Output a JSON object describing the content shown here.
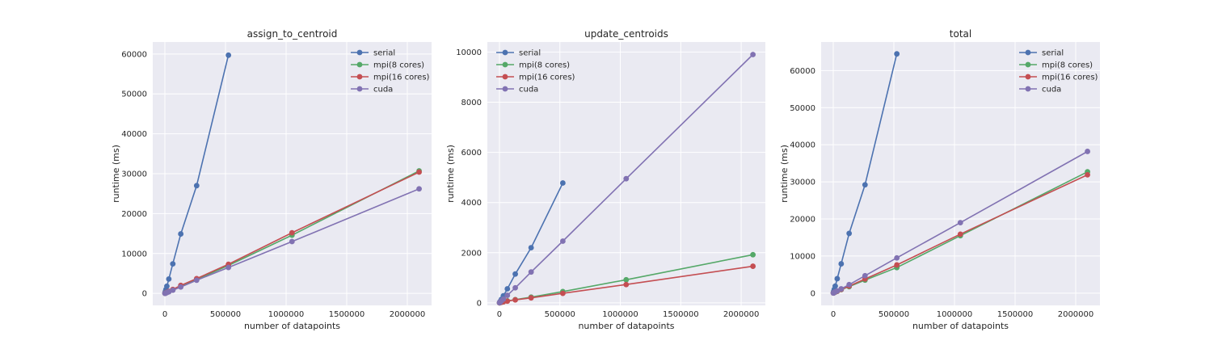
{
  "chart_data": [
    {
      "type": "line",
      "title": "assign_to_centroid",
      "xlabel": "number of datapoints",
      "ylabel": "runtime (ms)",
      "xlim": [
        -100000,
        2200000
      ],
      "ylim": [
        -3000,
        63000
      ],
      "xticks": [
        0,
        500000,
        1000000,
        1500000,
        2000000
      ],
      "xtick_labels": [
        "0",
        "500000",
        "1000000",
        "1500000",
        "2000000"
      ],
      "yticks": [
        0,
        10000,
        20000,
        30000,
        40000,
        50000,
        60000
      ],
      "ytick_labels": [
        "0",
        "10000",
        "20000",
        "30000",
        "40000",
        "50000",
        "60000"
      ],
      "grid": true,
      "legend": "upper right",
      "series": [
        {
          "name": "serial",
          "color": "#4c72b0",
          "x": [
            1024,
            2048,
            4096,
            8192,
            16384,
            32768,
            65536,
            131072,
            262144,
            524288
          ],
          "y": [
            100,
            200,
            450,
            950,
            1800,
            3600,
            7400,
            14900,
            27000,
            59700
          ]
        },
        {
          "name": "mpi(8 cores)",
          "color": "#55a868",
          "x": [
            1024,
            2048,
            4096,
            8192,
            16384,
            32768,
            65536,
            131072,
            262144,
            524288,
            1048576,
            2097152
          ],
          "y": [
            20,
            40,
            80,
            150,
            250,
            450,
            900,
            1800,
            3500,
            7000,
            14600,
            30700
          ]
        },
        {
          "name": "mpi(16 cores)",
          "color": "#c44e52",
          "x": [
            1024,
            2048,
            4096,
            8192,
            16384,
            32768,
            65536,
            131072,
            262144,
            524288,
            1048576,
            2097152
          ],
          "y": [
            20,
            40,
            80,
            150,
            250,
            500,
            1000,
            2000,
            3700,
            7300,
            15200,
            30400
          ]
        },
        {
          "name": "cuda",
          "color": "#8172b2",
          "x": [
            1024,
            2048,
            4096,
            8192,
            16384,
            32768,
            65536,
            131072,
            262144,
            524288,
            1048576,
            2097152
          ],
          "y": [
            15,
            30,
            60,
            120,
            200,
            400,
            800,
            1600,
            3300,
            6500,
            13000,
            26200
          ]
        }
      ]
    },
    {
      "type": "line",
      "title": "update_centroids",
      "xlabel": "number of datapoints",
      "ylabel": "runtime (ms)",
      "xlim": [
        -100000,
        2200000
      ],
      "ylim": [
        -100,
        10400
      ],
      "xticks": [
        0,
        500000,
        1000000,
        1500000,
        2000000
      ],
      "xtick_labels": [
        "0",
        "500000",
        "1000000",
        "1500000",
        "2000000"
      ],
      "yticks": [
        0,
        2000,
        4000,
        6000,
        8000,
        10000
      ],
      "ytick_labels": [
        "0",
        "2000",
        "4000",
        "6000",
        "8000",
        "10000"
      ],
      "grid": true,
      "legend": "upper left",
      "series": [
        {
          "name": "serial",
          "color": "#4c72b0",
          "x": [
            1024,
            2048,
            4096,
            8192,
            16384,
            32768,
            65536,
            131072,
            262144,
            524288
          ],
          "y": [
            10,
            20,
            35,
            70,
            140,
            280,
            560,
            1150,
            2200,
            4780
          ]
        },
        {
          "name": "mpi(8 cores)",
          "color": "#55a868",
          "x": [
            1024,
            2048,
            4096,
            8192,
            16384,
            32768,
            65536,
            131072,
            262144,
            524288,
            1048576,
            2097152
          ],
          "y": [
            2,
            4,
            8,
            15,
            25,
            40,
            80,
            130,
            230,
            450,
            920,
            1920
          ]
        },
        {
          "name": "mpi(16 cores)",
          "color": "#c44e52",
          "x": [
            1024,
            2048,
            4096,
            8192,
            16384,
            32768,
            65536,
            131072,
            262144,
            524288,
            1048576,
            2097152
          ],
          "y": [
            2,
            4,
            8,
            15,
            25,
            40,
            70,
            120,
            200,
            380,
            730,
            1460
          ]
        },
        {
          "name": "cuda",
          "color": "#8172b2",
          "x": [
            1024,
            2048,
            4096,
            8192,
            16384,
            32768,
            65536,
            131072,
            262144,
            524288,
            1048576,
            2097152
          ],
          "y": [
            5,
            10,
            20,
            40,
            80,
            150,
            300,
            600,
            1230,
            2460,
            4950,
            9900
          ]
        }
      ]
    },
    {
      "type": "line",
      "title": "total",
      "xlabel": "number of datapoints",
      "ylabel": "runtime (ms)",
      "xlim": [
        -100000,
        2200000
      ],
      "ylim": [
        -3300,
        67700
      ],
      "xticks": [
        0,
        500000,
        1000000,
        1500000,
        2000000
      ],
      "xtick_labels": [
        "0",
        "500000",
        "1000000",
        "1500000",
        "2000000"
      ],
      "yticks": [
        0,
        10000,
        20000,
        30000,
        40000,
        50000,
        60000
      ],
      "ytick_labels": [
        "0",
        "10000",
        "20000",
        "30000",
        "40000",
        "50000",
        "60000"
      ],
      "grid": true,
      "legend": "upper right",
      "series": [
        {
          "name": "serial",
          "color": "#4c72b0",
          "x": [
            1024,
            2048,
            4096,
            8192,
            16384,
            32768,
            65536,
            131072,
            262144,
            524288
          ],
          "y": [
            110,
            220,
            480,
            1000,
            1900,
            3900,
            7900,
            16100,
            29200,
            64500
          ]
        },
        {
          "name": "mpi(8 cores)",
          "color": "#55a868",
          "x": [
            1024,
            2048,
            4096,
            8192,
            16384,
            32768,
            65536,
            131072,
            262144,
            524288,
            1048576,
            2097152
          ],
          "y": [
            25,
            50,
            90,
            170,
            280,
            500,
            950,
            1750,
            3500,
            6900,
            15500,
            32700
          ]
        },
        {
          "name": "mpi(16 cores)",
          "color": "#c44e52",
          "x": [
            1024,
            2048,
            4096,
            8192,
            16384,
            32768,
            65536,
            131072,
            262144,
            524288,
            1048576,
            2097152
          ],
          "y": [
            25,
            50,
            90,
            170,
            290,
            520,
            1000,
            1900,
            3800,
            7600,
            15900,
            31900
          ]
        },
        {
          "name": "cuda",
          "color": "#8172b2",
          "x": [
            1024,
            2048,
            4096,
            8192,
            16384,
            32768,
            65536,
            131072,
            262144,
            524288,
            1048576,
            2097152
          ],
          "y": [
            25,
            50,
            100,
            200,
            350,
            600,
            1150,
            2300,
            4700,
            9500,
            19000,
            38200
          ]
        }
      ]
    }
  ]
}
